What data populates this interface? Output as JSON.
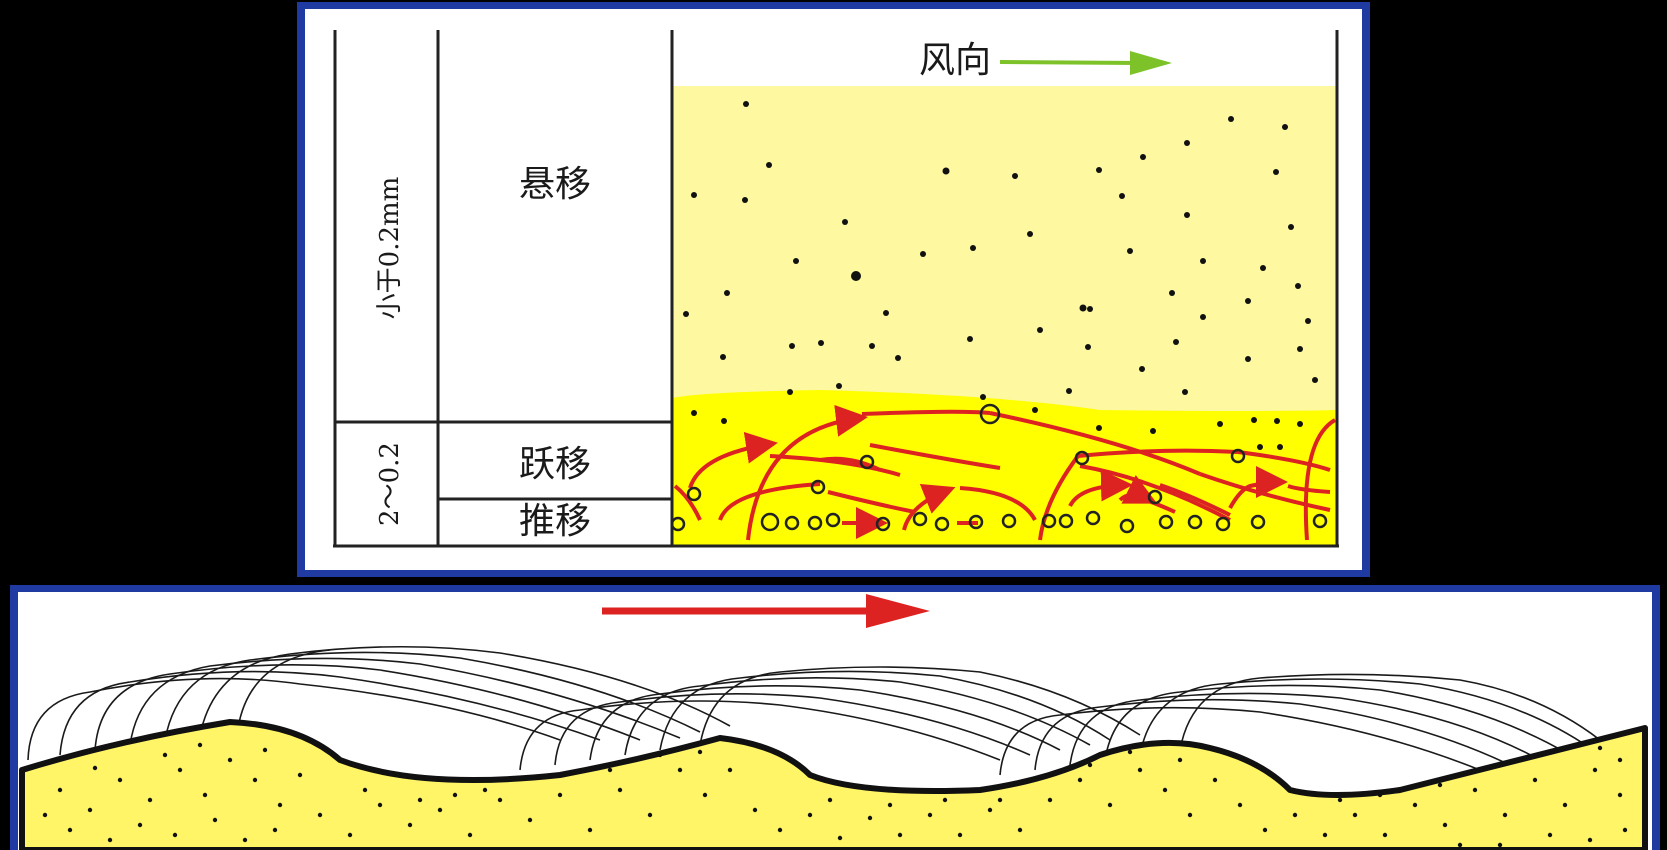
{
  "top_panel": {
    "wind_label": "风向",
    "suspension_label": "悬移",
    "saltation_label": "跃移",
    "traction_label": "推移",
    "size_fine_label": "小于0.2mm",
    "size_coarse_label": "2～0.2"
  },
  "colors": {
    "background": "#000000",
    "frame_blue": "#1f3aa0",
    "light_yellow": "#fef9a0",
    "yellow": "#ffff00",
    "sand_yellow": "#fff566",
    "arrow_red": "#dd2222",
    "arrow_green": "#7cc228"
  },
  "icons": {
    "wind_arrow": "green-right-arrow-icon",
    "wind_arrow_bottom": "red-right-arrow-icon"
  }
}
